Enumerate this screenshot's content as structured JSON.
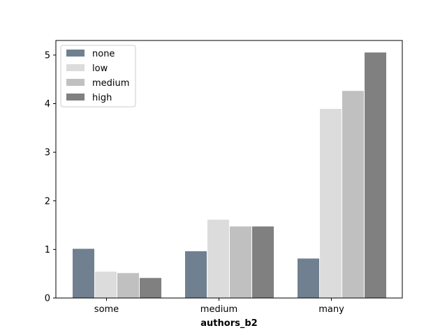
{
  "chart_data": {
    "type": "bar",
    "title": "",
    "xlabel": "authors_b2",
    "ylabel": "",
    "categories": [
      "some",
      "medium",
      "many"
    ],
    "series": [
      {
        "name": "none",
        "color": "#708090",
        "values": [
          1.02,
          0.97,
          0.82
        ]
      },
      {
        "name": "low",
        "color": "#dcdcdc",
        "values": [
          0.55,
          1.62,
          3.9
        ]
      },
      {
        "name": "medium",
        "color": "#c0c0c0",
        "values": [
          0.52,
          1.48,
          4.27
        ]
      },
      {
        "name": "high",
        "color": "#808080",
        "values": [
          0.42,
          1.48,
          5.06
        ]
      }
    ],
    "ylim": [
      0,
      5.3
    ],
    "yticks": [
      0,
      1,
      2,
      3,
      4,
      5
    ],
    "grid": false,
    "legend_position": "top-left"
  }
}
